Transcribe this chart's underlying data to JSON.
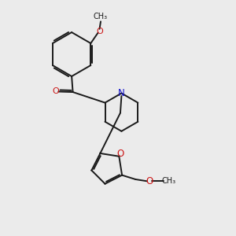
{
  "background_color": "#ebebeb",
  "bond_color": "#1a1a1a",
  "nitrogen_color": "#1414cc",
  "oxygen_color": "#cc1414",
  "line_width": 1.4,
  "figsize": [
    3.0,
    3.0
  ],
  "dpi": 100,
  "xlim": [
    0,
    10
  ],
  "ylim": [
    0,
    10
  ]
}
